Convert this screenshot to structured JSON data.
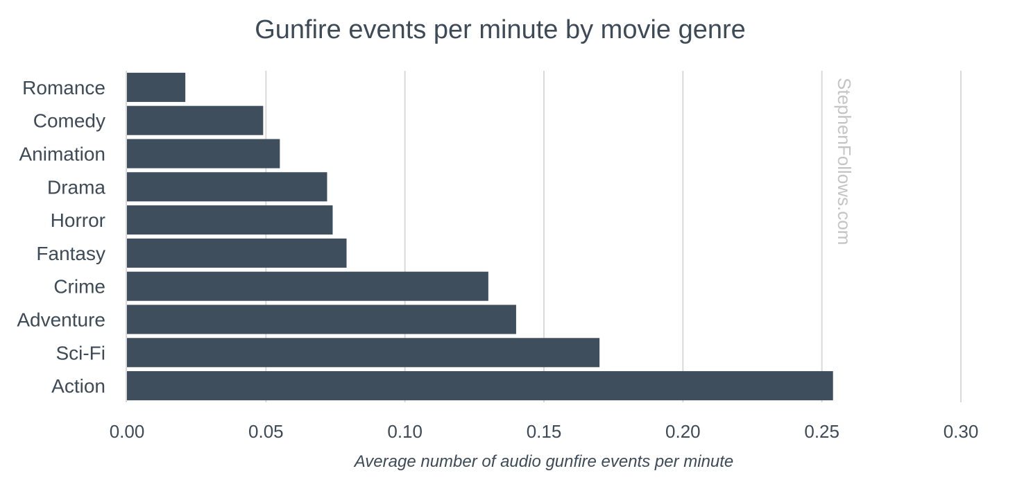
{
  "chart_data": {
    "type": "bar",
    "orientation": "horizontal",
    "title": "Gunfire events per minute by movie genre",
    "xlabel": "Average number of audio gunfire events per minute",
    "ylabel": "",
    "categories": [
      "Romance",
      "Comedy",
      "Animation",
      "Drama",
      "Horror",
      "Fantasy",
      "Crime",
      "Adventure",
      "Sci-Fi",
      "Action"
    ],
    "values": [
      0.021,
      0.049,
      0.055,
      0.072,
      0.074,
      0.079,
      0.13,
      0.14,
      0.17,
      0.254
    ],
    "xlim": [
      0,
      0.3
    ],
    "x_ticks": [
      0.0,
      0.05,
      0.1,
      0.15,
      0.2,
      0.25,
      0.3
    ],
    "tick_labels": [
      "0.00",
      "0.05",
      "0.10",
      "0.15",
      "0.20",
      "0.25",
      "0.30"
    ],
    "grid": true,
    "legend": "none",
    "bar_color": "#3e4e5c",
    "grid_color": "#d9d9d9",
    "text_color": "#3d4a58",
    "watermark": "StephenFollows.com"
  }
}
